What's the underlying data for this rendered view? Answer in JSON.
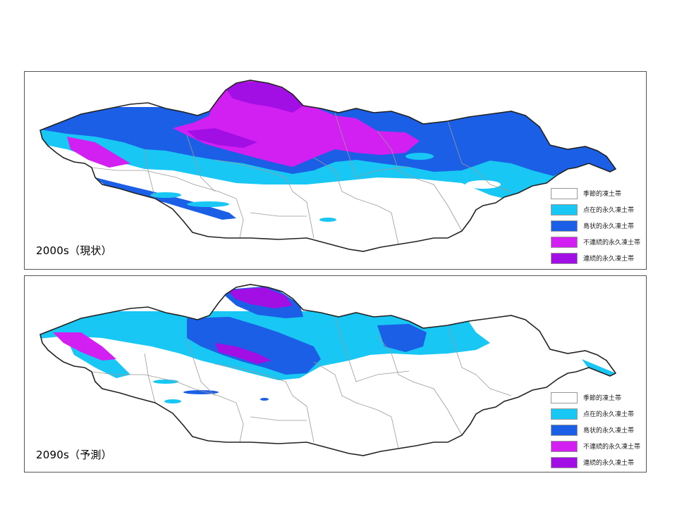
{
  "panels": [
    {
      "label": "2000s（現状）"
    },
    {
      "label": "2090s（予測）"
    }
  ],
  "legend": [
    {
      "label": "季節的凍土帯",
      "color": "#ffffff"
    },
    {
      "label": "点在的永久凍土帯",
      "color": "#19c7f4"
    },
    {
      "label": "島状的永久凍土帯",
      "color": "#1a5fe6"
    },
    {
      "label": "不連続的永久凍土帯",
      "color": "#d21ff2"
    },
    {
      "label": "連続的永久凍土帯",
      "color": "#a20fe4"
    }
  ],
  "colors": {
    "seasonal": "#ffffff",
    "sporadic": "#19c7f4",
    "isolated": "#1a5fe6",
    "discontinuous": "#d21ff2",
    "continuous": "#a20fe4"
  }
}
